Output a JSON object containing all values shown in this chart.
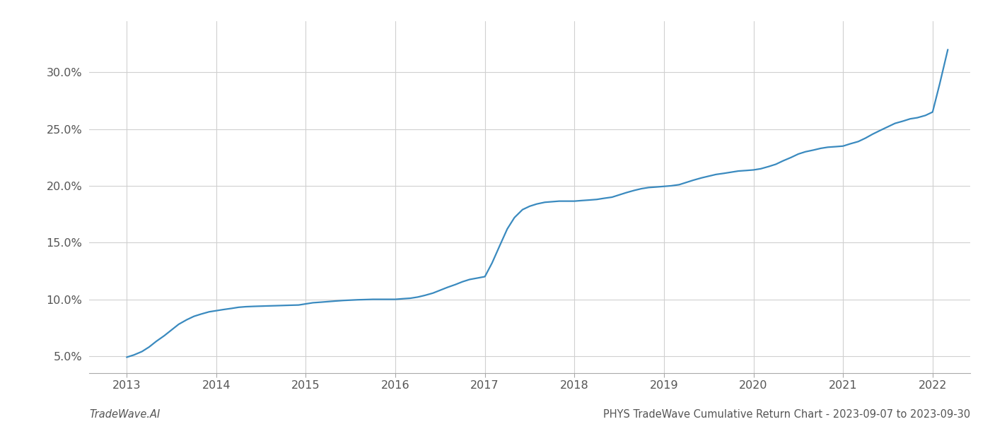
{
  "footer_left": "TradeWave.AI",
  "footer_right": "PHYS TradeWave Cumulative Return Chart - 2023-09-07 to 2023-09-30",
  "line_color": "#3a8abf",
  "line_width": 1.6,
  "background_color": "#ffffff",
  "grid_color": "#d0d0d0",
  "x_values": [
    2013.0,
    2013.08,
    2013.17,
    2013.25,
    2013.33,
    2013.42,
    2013.5,
    2013.58,
    2013.67,
    2013.75,
    2013.83,
    2013.92,
    2014.0,
    2014.08,
    2014.17,
    2014.25,
    2014.33,
    2014.42,
    2014.5,
    2014.58,
    2014.67,
    2014.75,
    2014.83,
    2014.92,
    2015.0,
    2015.08,
    2015.17,
    2015.25,
    2015.33,
    2015.42,
    2015.5,
    2015.58,
    2015.67,
    2015.75,
    2015.83,
    2015.92,
    2016.0,
    2016.08,
    2016.17,
    2016.25,
    2016.33,
    2016.42,
    2016.5,
    2016.58,
    2016.67,
    2016.75,
    2016.83,
    2016.92,
    2017.0,
    2017.08,
    2017.17,
    2017.25,
    2017.33,
    2017.42,
    2017.5,
    2017.58,
    2017.67,
    2017.75,
    2017.83,
    2017.92,
    2018.0,
    2018.08,
    2018.17,
    2018.25,
    2018.33,
    2018.42,
    2018.5,
    2018.58,
    2018.67,
    2018.75,
    2018.83,
    2018.92,
    2019.0,
    2019.08,
    2019.17,
    2019.25,
    2019.33,
    2019.42,
    2019.5,
    2019.58,
    2019.67,
    2019.75,
    2019.83,
    2019.92,
    2020.0,
    2020.08,
    2020.17,
    2020.25,
    2020.33,
    2020.42,
    2020.5,
    2020.58,
    2020.67,
    2020.75,
    2020.83,
    2020.92,
    2021.0,
    2021.08,
    2021.17,
    2021.25,
    2021.33,
    2021.42,
    2021.5,
    2021.58,
    2021.67,
    2021.75,
    2021.83,
    2021.92,
    2022.0,
    2022.08,
    2022.17
  ],
  "y_values": [
    4.9,
    5.1,
    5.4,
    5.8,
    6.3,
    6.8,
    7.3,
    7.8,
    8.2,
    8.5,
    8.7,
    8.9,
    9.0,
    9.1,
    9.2,
    9.3,
    9.35,
    9.38,
    9.4,
    9.42,
    9.44,
    9.46,
    9.48,
    9.5,
    9.6,
    9.7,
    9.75,
    9.8,
    9.85,
    9.9,
    9.93,
    9.96,
    9.98,
    10.0,
    10.0,
    10.0,
    10.0,
    10.05,
    10.1,
    10.2,
    10.35,
    10.55,
    10.8,
    11.05,
    11.3,
    11.55,
    11.75,
    11.88,
    12.0,
    13.2,
    14.8,
    16.2,
    17.2,
    17.9,
    18.2,
    18.4,
    18.55,
    18.6,
    18.65,
    18.65,
    18.65,
    18.7,
    18.75,
    18.8,
    18.9,
    19.0,
    19.2,
    19.4,
    19.6,
    19.75,
    19.85,
    19.9,
    19.95,
    20.0,
    20.1,
    20.3,
    20.5,
    20.7,
    20.85,
    21.0,
    21.1,
    21.2,
    21.3,
    21.35,
    21.4,
    21.5,
    21.7,
    21.9,
    22.2,
    22.5,
    22.8,
    23.0,
    23.15,
    23.3,
    23.4,
    23.45,
    23.5,
    23.7,
    23.9,
    24.2,
    24.55,
    24.9,
    25.2,
    25.5,
    25.7,
    25.9,
    26.0,
    26.2,
    26.5,
    29.0,
    32.0
  ],
  "xlim": [
    2012.58,
    2022.42
  ],
  "ylim": [
    3.5,
    34.5
  ],
  "yticks": [
    5.0,
    10.0,
    15.0,
    20.0,
    25.0,
    30.0
  ],
  "xticks": [
    2013,
    2014,
    2015,
    2016,
    2017,
    2018,
    2019,
    2020,
    2021,
    2022
  ],
  "tick_fontsize": 11.5,
  "footer_fontsize": 10.5
}
